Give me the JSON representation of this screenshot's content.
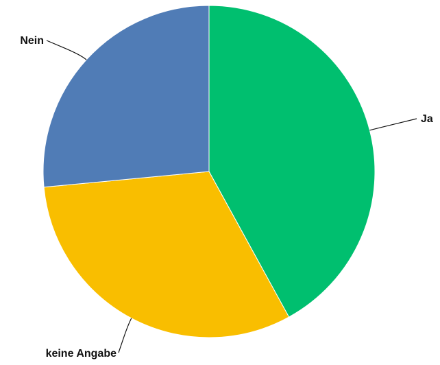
{
  "chart_data": {
    "type": "pie",
    "title": "",
    "slices": [
      {
        "label": "Ja",
        "value": 42.0,
        "color": "#00BF6F"
      },
      {
        "label": "keine Angabe",
        "value": 31.5,
        "color": "#F9BE00"
      },
      {
        "label": "Nein",
        "value": 26.5,
        "color": "#507CB6"
      }
    ],
    "start": "top",
    "direction": "clockwise",
    "legend": "none",
    "labels": "outside-with-leader-lines"
  }
}
